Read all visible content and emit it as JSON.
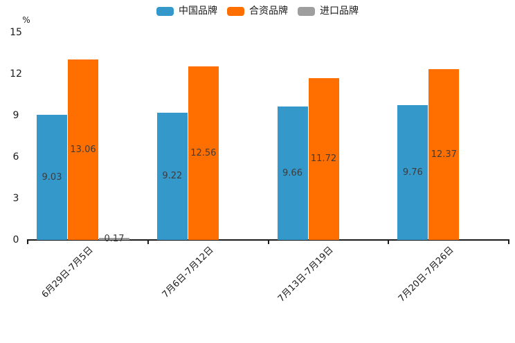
{
  "chart_data": {
    "type": "bar",
    "title": "",
    "ylabel": "%",
    "xlabel": "",
    "categories": [
      "6月29日-7月5日",
      "7月6日-7月12日",
      "7月13日-7月19日",
      "7月20日-7月26日"
    ],
    "series": [
      {
        "name": "中国品牌",
        "color": "#3498cb",
        "values": [
          9.03,
          9.22,
          9.66,
          9.76
        ]
      },
      {
        "name": "合资品牌",
        "color": "#ff6f00",
        "values": [
          13.06,
          12.56,
          11.72,
          12.37
        ]
      },
      {
        "name": "进口品牌",
        "color": "#9e9e9e",
        "values": [
          0.17,
          0,
          0,
          0
        ]
      }
    ],
    "ylim": [
      0,
      15
    ],
    "yticks": [
      0,
      3,
      6,
      9,
      12,
      15
    ],
    "grid": false,
    "legend_position": "top",
    "bar_label_color": "#3c3c3c",
    "axis_color": "#1a1a1a",
    "background_color": "#ffffff"
  }
}
